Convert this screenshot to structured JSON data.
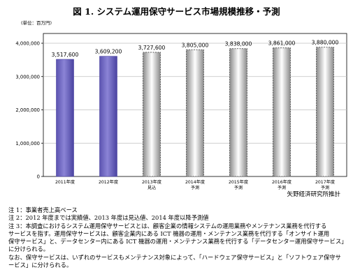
{
  "title": "図 1. システム運用保守サービス市場規模推移・予測",
  "chart_data": {
    "type": "bar",
    "unit_label": "(単位：百万円)",
    "categories": [
      "2011年度",
      "2012年度",
      "2013年度",
      "2014年度",
      "2015年度",
      "2016年度",
      "2017年度"
    ],
    "category_notes": [
      "",
      "",
      "見込",
      "予測",
      "予測",
      "予測",
      "予測"
    ],
    "values": [
      3517600,
      3609200,
      3727600,
      3805000,
      3838000,
      3861000,
      3880000
    ],
    "value_labels": [
      "3,517,600",
      "3,609,200",
      "3,727,600",
      "3,805,000",
      "3,838,000",
      "3,861,000",
      "3,880,000"
    ],
    "bar_styles": [
      "actual",
      "actual",
      "forecast",
      "forecast",
      "forecast",
      "forecast",
      "forecast"
    ],
    "yticks": [
      0,
      1000000,
      2000000,
      3000000,
      4000000
    ],
    "ytick_labels": [
      "0",
      "1,000,000",
      "2,000,000",
      "3,000,000",
      "4,000,000"
    ],
    "ylim": [
      0,
      4000000
    ],
    "grid": true,
    "colors": {
      "actual": "#7b73c8",
      "actual_dark": "#4a43a0",
      "forecast_edge": "#555555",
      "grid": "#bfbfbf"
    }
  },
  "source": "矢野経済研究所推計",
  "notes": [
    "注 1：事業者売上高ベース",
    "注 2：2012 年度までは実績値、2013 年度は見込値、2014 年度以降予測値",
    "注 3：本調査におけるシステム運用保守サービスとは、顧客企業の情報システムの運用業務やメンテナンス業務を代行する",
    "サービスを指す。運用保守サービスは、顧客企業内にある ICT 機器の運用・メンテナンス業務を代行する「オンサイト運用",
    "保守サービス」と、データセンター内にある ICT 機器の運用・メンテナンス業務を代行する「データセンター運用保守サービス」",
    "に分けられる。",
    "なお、保守サービスは、いずれのサービスもメンテナンス対象によって、「ハードウェア保守サービス」と「ソフトウェア保守サ",
    "ービス」に分けられる。"
  ]
}
